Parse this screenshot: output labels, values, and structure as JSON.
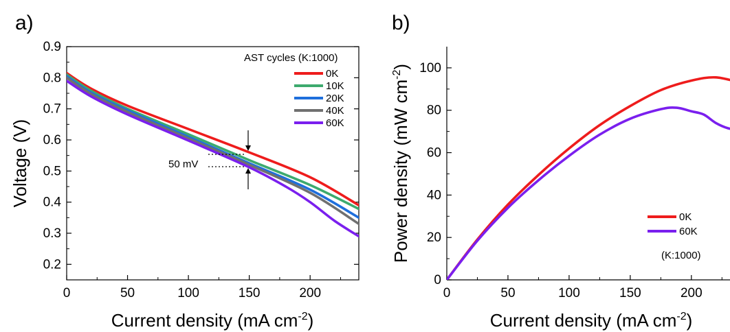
{
  "chart_data": [
    {
      "panel": "a)",
      "type": "line",
      "xlabel": "Current density (mA cm",
      "xlabel_sup": "-2",
      "xlabel_end": ")",
      "ylabel": "Voltage (V)",
      "xlim": [
        0,
        240
      ],
      "ylim": [
        0.15,
        0.9
      ],
      "xticks": [
        0,
        50,
        100,
        150,
        200
      ],
      "yticks": [
        0.2,
        0.3,
        0.4,
        0.5,
        0.6,
        0.7,
        0.8,
        0.9
      ],
      "legend_title": "AST cycles (K:1000)",
      "legend_position": "top-right",
      "annotation": "50 mV",
      "series": [
        {
          "name": "0K",
          "color": "#ee1c1c",
          "x": [
            0,
            20,
            50,
            100,
            150,
            200,
            240
          ],
          "y": [
            0.815,
            0.765,
            0.71,
            0.635,
            0.56,
            0.48,
            0.39
          ]
        },
        {
          "name": "10K",
          "color": "#3daa6e",
          "x": [
            0,
            20,
            50,
            100,
            150,
            200,
            240
          ],
          "y": [
            0.81,
            0.758,
            0.7,
            0.618,
            0.535,
            0.455,
            0.378
          ]
        },
        {
          "name": "20K",
          "color": "#1f6fdc",
          "x": [
            0,
            20,
            50,
            100,
            150,
            200,
            240
          ],
          "y": [
            0.805,
            0.752,
            0.695,
            0.61,
            0.525,
            0.44,
            0.35
          ]
        },
        {
          "name": "40K",
          "color": "#707070",
          "x": [
            0,
            20,
            50,
            100,
            150,
            200,
            240
          ],
          "y": [
            0.8,
            0.748,
            0.69,
            0.605,
            0.52,
            0.43,
            0.33
          ]
        },
        {
          "name": "60K",
          "color": "#7a1fee",
          "x": [
            0,
            20,
            50,
            100,
            150,
            180,
            200,
            220,
            240
          ],
          "y": [
            0.79,
            0.74,
            0.682,
            0.598,
            0.512,
            0.45,
            0.4,
            0.34,
            0.29
          ]
        }
      ]
    },
    {
      "panel": "b)",
      "type": "line",
      "xlabel": "Current density (mA cm",
      "xlabel_sup": "-2",
      "xlabel_end": ")",
      "ylabel": "Power density (mW cm",
      "ylabel_sup": "-2",
      "ylabel_end": ")",
      "xlim": [
        0,
        240
      ],
      "ylim": [
        0,
        110
      ],
      "xticks": [
        0,
        50,
        100,
        150,
        200
      ],
      "yticks": [
        0,
        20,
        40,
        60,
        80,
        100
      ],
      "legend_position": "bottom-right",
      "legend_note": "(K:1000)",
      "series": [
        {
          "name": "0K",
          "color": "#ee1c1c",
          "x": [
            0,
            25,
            50,
            75,
            100,
            125,
            150,
            175,
            200,
            220,
            240
          ],
          "y": [
            0,
            19,
            35.5,
            49.5,
            62,
            73,
            82,
            89.5,
            94,
            95.5,
            93
          ]
        },
        {
          "name": "60K",
          "color": "#7a1fee",
          "x": [
            0,
            25,
            50,
            75,
            100,
            125,
            150,
            175,
            188,
            200,
            210,
            220,
            230,
            240
          ],
          "y": [
            0,
            18.5,
            34,
            47,
            58.5,
            68.5,
            76,
            80.5,
            81.2,
            79.5,
            78,
            74,
            71.5,
            70.5
          ]
        }
      ]
    }
  ]
}
